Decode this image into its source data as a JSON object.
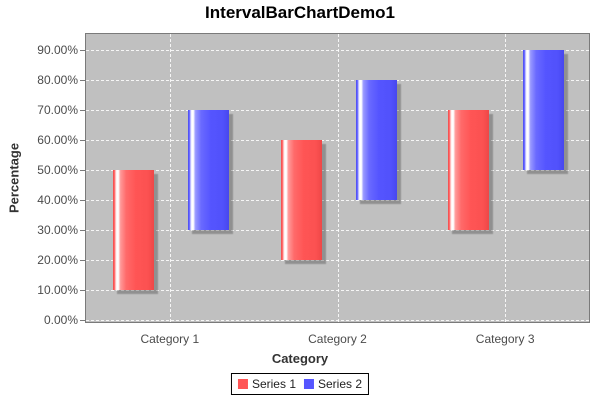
{
  "chart_data": {
    "type": "bar",
    "subtype": "interval-floating-bar",
    "title": "IntervalBarChartDemo1",
    "xlabel": "Category",
    "ylabel": "Percentage",
    "categories": [
      "Category 1",
      "Category 2",
      "Category 3"
    ],
    "series": [
      {
        "name": "Series 1",
        "color": "#FF5555",
        "intervals_pct": [
          [
            10,
            50
          ],
          [
            20,
            60
          ],
          [
            30,
            70
          ]
        ]
      },
      {
        "name": "Series 2",
        "color": "#5555FF",
        "intervals_pct": [
          [
            30,
            70
          ],
          [
            40,
            80
          ],
          [
            50,
            90
          ]
        ]
      }
    ],
    "y_ticks_pct": [
      0,
      10,
      20,
      30,
      40,
      50,
      60,
      70,
      80,
      90
    ],
    "y_tick_labels": [
      "0.00%",
      "10.00%",
      "20.00%",
      "30.00%",
      "40.00%",
      "50.00%",
      "60.00%",
      "70.00%",
      "80.00%",
      "90.00%"
    ],
    "ylim": [
      0,
      95
    ],
    "grid": true,
    "gridline_style": "white-dashed",
    "legend_position": "bottom",
    "colors": {
      "plot_background": "#C0C0C0",
      "gridline": "#FFFFFF",
      "plot_border": "#7A7A7A",
      "series1": "#FF5555",
      "series2": "#5555FF",
      "title_text": "#000000",
      "tick_text": "#4B4B4B"
    }
  }
}
